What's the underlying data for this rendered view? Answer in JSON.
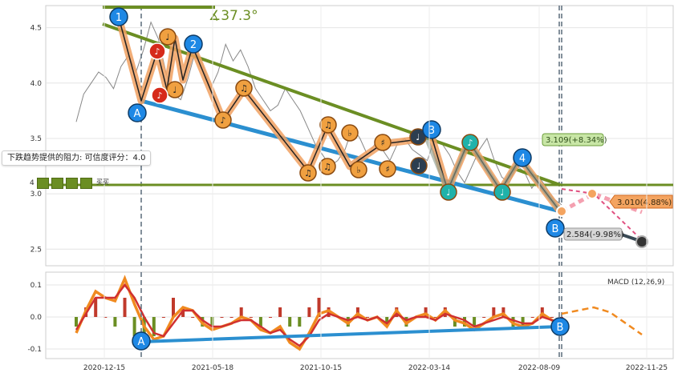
{
  "angle_label": "∡37.3°",
  "resistance_note": "下跌趋势提供的阻力: 可信度评分：4.0",
  "small_left_label": "4",
  "badge_text": "买买",
  "macd_label": "MACD (12,26,9)",
  "price_boxes": [
    {
      "text": "3.109(+8.34%)",
      "color": "#c8e6a6",
      "border": "#6b9e3a"
    },
    {
      "text": "3.010(4.88%)",
      "color": "#f4a460",
      "border": "#d2691e"
    },
    {
      "text": "2.584(-9.98%)",
      "color": "#d6d6d6",
      "border": "#999999"
    }
  ],
  "wave_labels": [
    {
      "text": "1",
      "color": "#1e88e5"
    },
    {
      "text": "2",
      "color": "#1e88e5"
    },
    {
      "text": "3",
      "color": "#1e88e5"
    },
    {
      "text": "4",
      "color": "#1e88e5"
    },
    {
      "text": "A",
      "color": "#1e88e5"
    },
    {
      "text": "B",
      "color": "#1e88e5"
    },
    {
      "text": "A",
      "color": "#1e88e5"
    },
    {
      "text": "B",
      "color": "#1e88e5"
    }
  ],
  "colors": {
    "trend_green": "#6b8e23",
    "trend_blue": "#2b8fd0",
    "wave_orange": "#f0a060",
    "macd_orange": "#f08a20",
    "macd_red": "#d03030",
    "price_line": "#444444"
  },
  "chart_data": [
    {
      "type": "line",
      "x_ticks": [
        "2020-12-15",
        "2021-05-18",
        "2021-10-15",
        "2022-03-14",
        "2022-08-09",
        "2022-11-25"
      ],
      "y_ticks": [
        2.5,
        3.0,
        3.5,
        4.0,
        4.5
      ],
      "ylim": [
        2.35,
        4.7
      ],
      "horizontal_level": 3.1,
      "series": [
        {
          "values": [
            3.65,
            3.9,
            4.0,
            4.1,
            4.05,
            3.95,
            4.15,
            4.25,
            4.1,
            4.3,
            4.55,
            4.4,
            4.1,
            3.9,
            3.85,
            4.05,
            4.3,
            4.15,
            3.95,
            4.1,
            4.35,
            4.2,
            4.3,
            4.15,
            3.95,
            3.85,
            3.75,
            3.8,
            3.95,
            3.85,
            3.75,
            3.6,
            3.45,
            3.35,
            3.25,
            3.3,
            3.4,
            3.6,
            3.5,
            3.35,
            3.45,
            3.4,
            3.3,
            3.45,
            3.5,
            3.4,
            3.35,
            3.3,
            3.5,
            3.45,
            3.35,
            3.2,
            3.1,
            3.25,
            3.4,
            3.5,
            3.3,
            3.15,
            3.1,
            3.25,
            3.2,
            3.05,
            3.15,
            3.05,
            2.95,
            2.9
          ]
        }
      ]
    },
    {
      "type": "line",
      "title": "MACD (12,26,9)",
      "y_ticks": [
        0.1,
        0.0,
        -0.1
      ],
      "ylim": [
        -0.13,
        0.14
      ],
      "series": [
        {
          "values": [
            -0.05,
            0.02,
            0.08,
            0.06,
            0.05,
            0.12,
            0.04,
            -0.03,
            -0.07,
            -0.06,
            0.0,
            0.03,
            0.02,
            -0.02,
            -0.04,
            -0.03,
            -0.02,
            0.0,
            -0.01,
            -0.04,
            -0.05,
            -0.03,
            -0.08,
            -0.1,
            -0.05,
            0.01,
            0.02,
            0.0,
            -0.02,
            0.01,
            -0.01,
            0.0,
            -0.03,
            0.02,
            -0.02,
            0.0,
            0.01,
            -0.01,
            0.02,
            -0.01,
            -0.02,
            -0.04,
            -0.02,
            0.0,
            0.01,
            -0.02,
            -0.03,
            -0.02,
            0.01,
            -0.01,
            -0.02
          ]
        },
        {
          "values": [
            -0.04,
            0.01,
            0.06,
            0.06,
            0.06,
            0.1,
            0.06,
            0.0,
            -0.05,
            -0.06,
            -0.02,
            0.02,
            0.02,
            -0.01,
            -0.03,
            -0.03,
            -0.02,
            -0.01,
            -0.01,
            -0.03,
            -0.05,
            -0.04,
            -0.07,
            -0.09,
            -0.06,
            -0.01,
            0.01,
            0.0,
            -0.01,
            0.0,
            -0.01,
            0.0,
            -0.02,
            0.01,
            -0.01,
            0.0,
            0.0,
            -0.01,
            0.01,
            0.0,
            -0.01,
            -0.03,
            -0.02,
            -0.01,
            0.0,
            -0.01,
            -0.02,
            -0.02,
            0.0,
            -0.01,
            -0.02
          ]
        }
      ]
    }
  ]
}
